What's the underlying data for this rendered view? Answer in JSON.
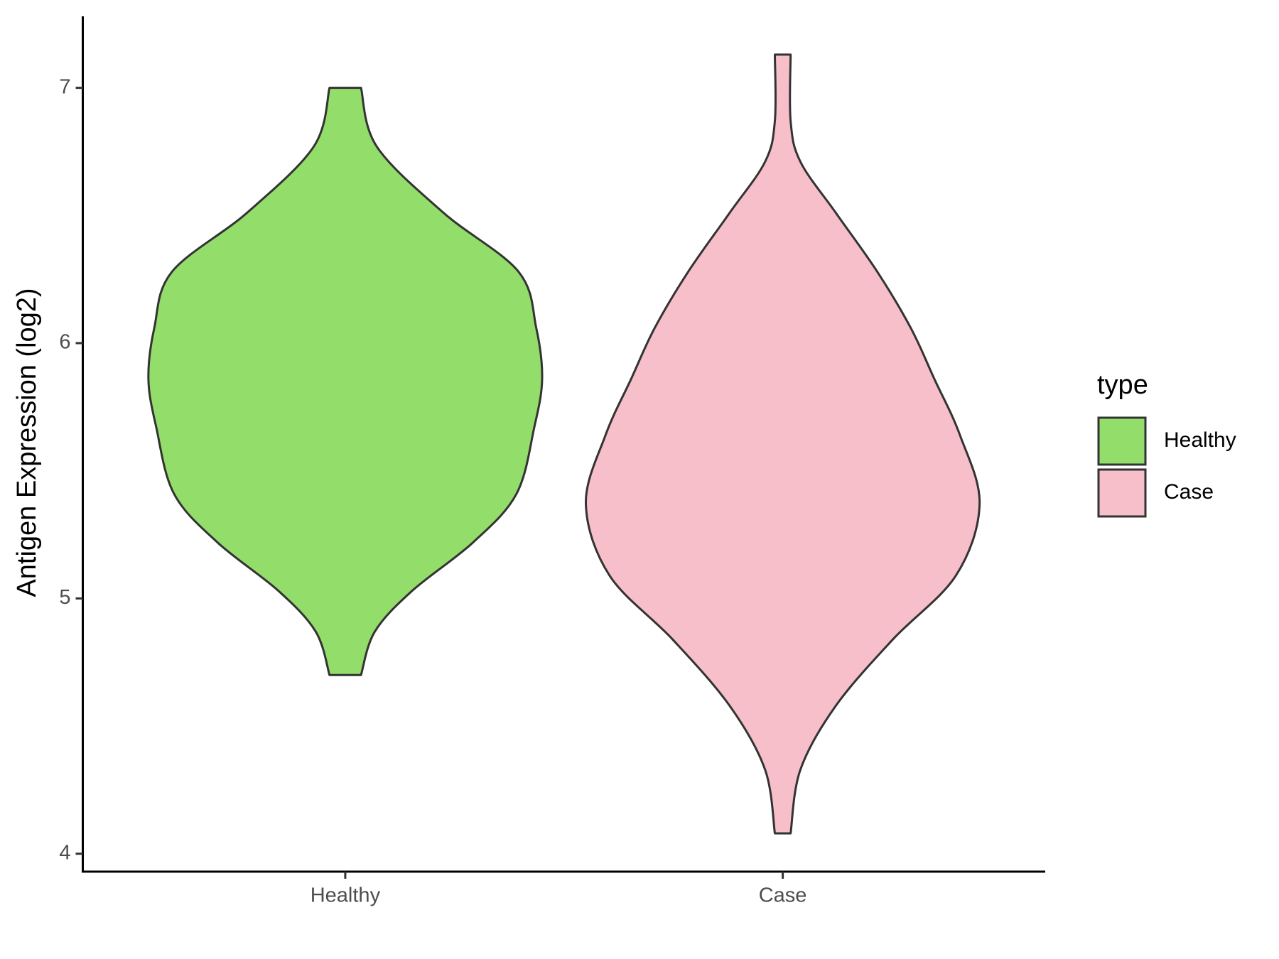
{
  "chart_data": {
    "type": "violin",
    "y_label": "Antigen Expression (log2)",
    "categories": [
      "Healthy",
      "Case"
    ],
    "ylim": [
      3.93,
      7.28
    ],
    "yticks": [
      4,
      5,
      6,
      7
    ],
    "legend_title": "type",
    "legend_position": "right",
    "series": [
      {
        "name": "Healthy",
        "color": "#93dd6a",
        "y": [
          7.0,
          6.77,
          6.51,
          6.28,
          6.06,
          5.86,
          5.67,
          5.41,
          5.22,
          5.03,
          4.87,
          4.7
        ],
        "density": [
          0.08,
          0.16,
          0.5,
          0.88,
          0.97,
          1.0,
          0.96,
          0.87,
          0.65,
          0.34,
          0.15,
          0.08
        ]
      },
      {
        "name": "Case",
        "color": "#f7bfca",
        "y": [
          7.13,
          6.87,
          6.71,
          6.51,
          6.28,
          6.06,
          5.86,
          5.64,
          5.37,
          5.09,
          4.84,
          4.58,
          4.33,
          4.08
        ],
        "density": [
          0.04,
          0.04,
          0.09,
          0.27,
          0.48,
          0.65,
          0.77,
          0.9,
          1.0,
          0.88,
          0.56,
          0.27,
          0.09,
          0.04
        ]
      }
    ]
  }
}
